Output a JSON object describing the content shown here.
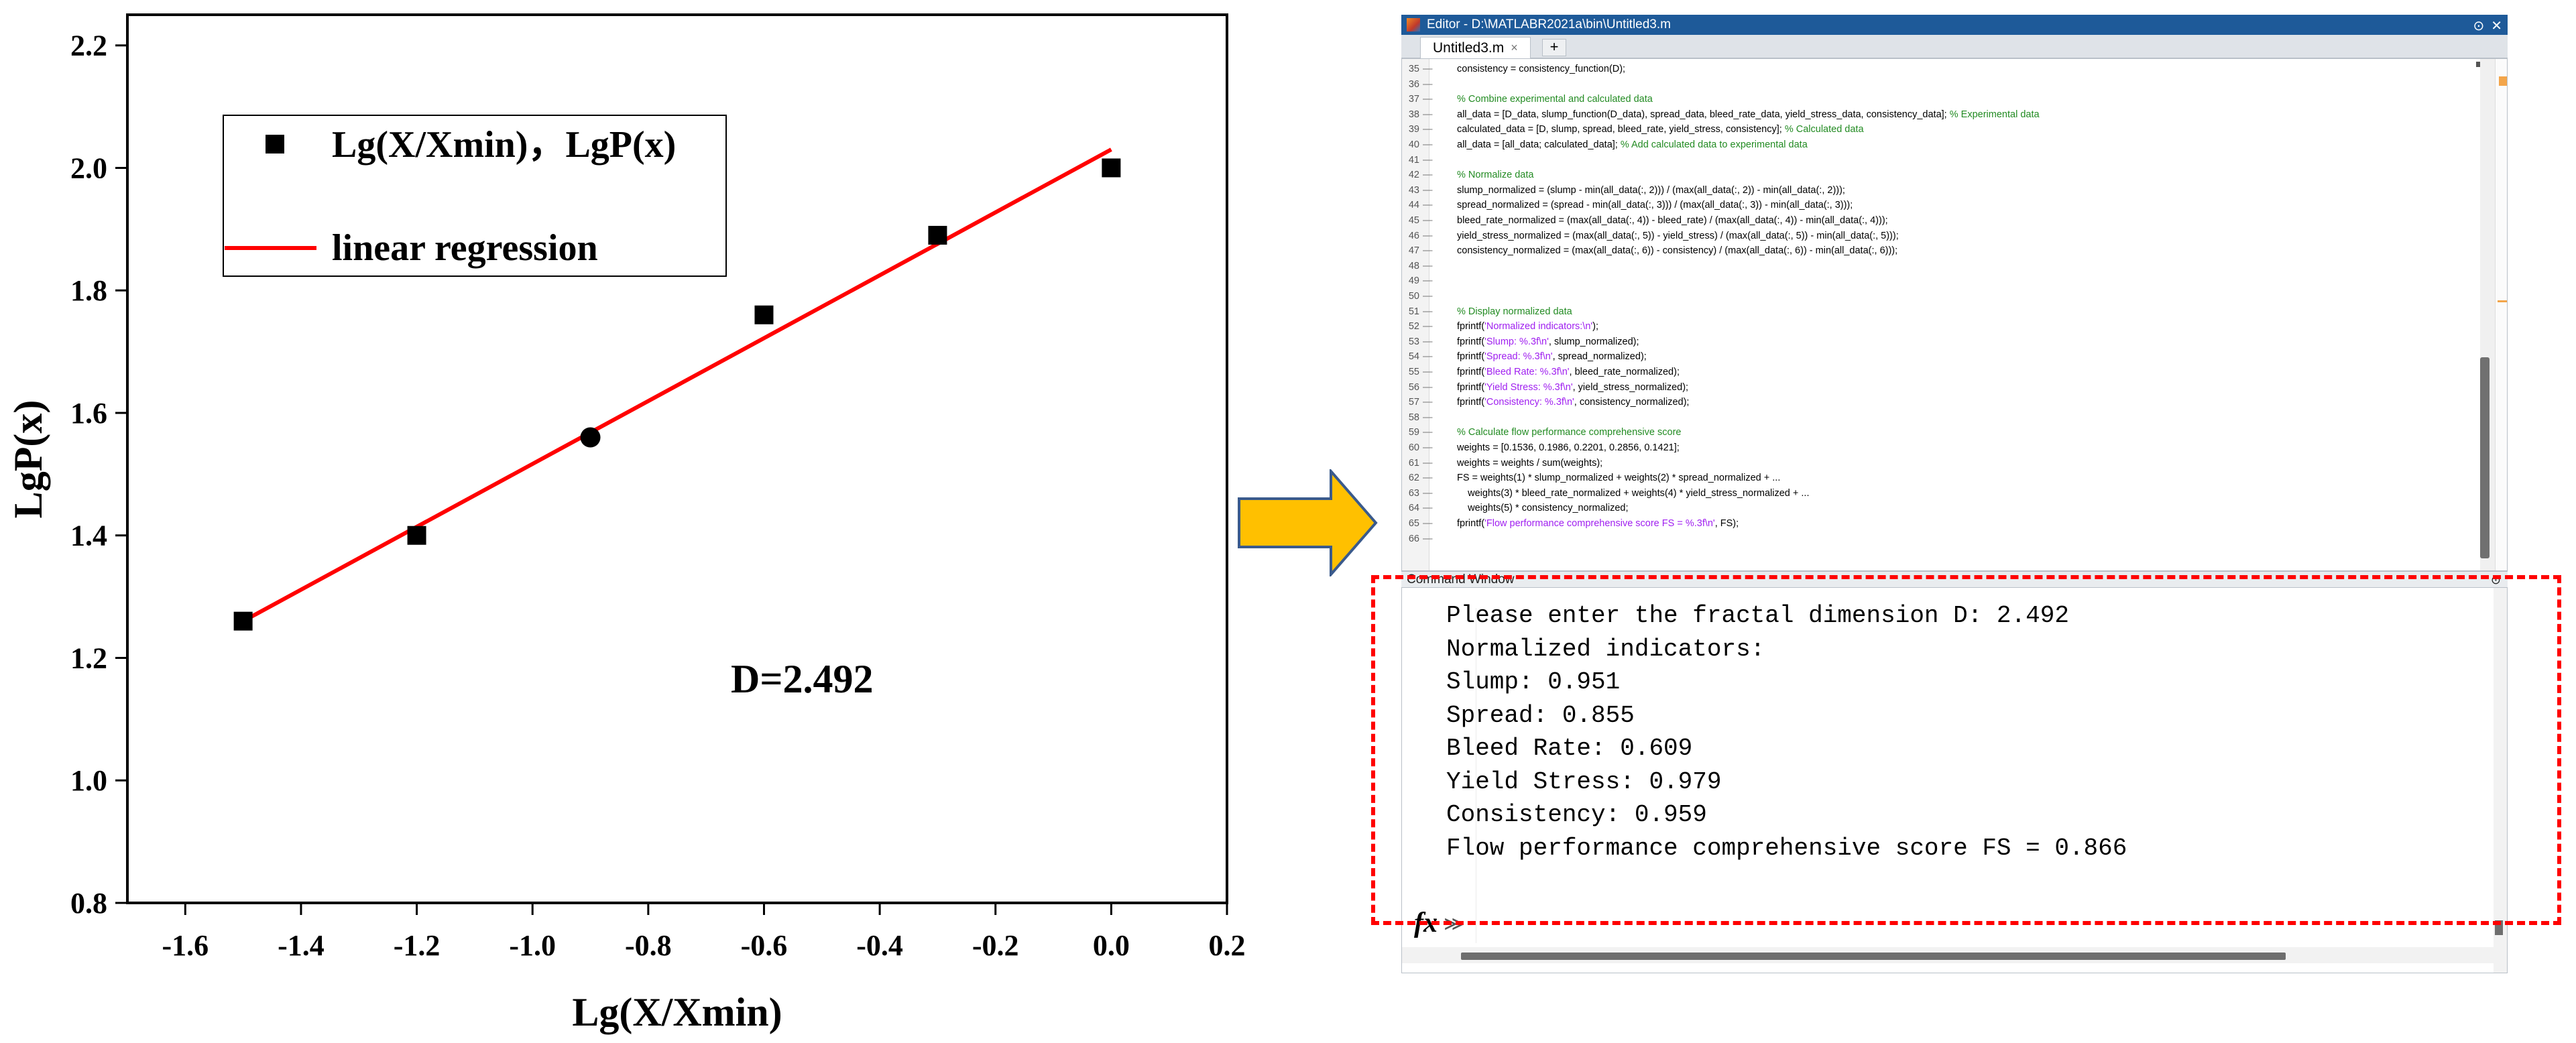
{
  "chart_data": {
    "type": "scatter",
    "xlabel": "Lg(X/Xmin)",
    "ylabel": "LgP(x)",
    "xlim": [
      -1.7,
      0.2
    ],
    "ylim": [
      0.8,
      2.25
    ],
    "x_ticks": [
      "-1.6",
      "-1.4",
      "-1.2",
      "-1.0",
      "-0.8",
      "-0.6",
      "-0.4",
      "-0.2",
      "0.0",
      "0.2"
    ],
    "y_ticks": [
      "0.8",
      "1.0",
      "1.2",
      "1.4",
      "1.6",
      "1.8",
      "2.0",
      "2.2"
    ],
    "series": [
      {
        "name": "Lg(X/Xmin)，LgP(x)",
        "marker": "square",
        "color": "#000000",
        "x": [
          -1.5,
          -1.2,
          -0.9,
          -0.6,
          -0.3,
          0.0
        ],
        "y": [
          1.26,
          1.4,
          1.56,
          1.76,
          1.89,
          2.0
        ]
      },
      {
        "name": "linear regression",
        "kind": "line",
        "color": "#ff0000",
        "x": [
          -1.5,
          0.0
        ],
        "y": [
          1.26,
          2.03
        ]
      }
    ],
    "legend": {
      "position": "top-left",
      "entries": [
        "Lg(X/Xmin)，LgP(x)",
        "linear regression"
      ]
    },
    "annotation": "D=2.492",
    "grid": false
  },
  "arrow": {
    "color": "#ffc000",
    "outline": "#3a5a8c"
  },
  "editor": {
    "title": "Editor - D:\\MATLABR2021a\\bin\\Untitled3.m",
    "tab_label": "Untitled3.m",
    "tab_close": "×",
    "add_tab": "+",
    "lines": [
      {
        "n": "35",
        "parts": [
          {
            "t": "consistency = consistency_function(D);",
            "c": ""
          }
        ]
      },
      {
        "n": "36",
        "parts": []
      },
      {
        "n": "37",
        "parts": [
          {
            "t": "% Combine experimental and calculated data",
            "c": "comment"
          }
        ]
      },
      {
        "n": "38",
        "parts": [
          {
            "t": "all_data = [D_data, slump_function(D_data), spread_data, bleed_rate_data, yield_stress_data, consistency_data]; ",
            "c": ""
          },
          {
            "t": "% Experimental data",
            "c": "comment"
          }
        ]
      },
      {
        "n": "39",
        "parts": [
          {
            "t": "calculated_data = [D, slump, spread, bleed_rate, yield_stress, consistency]; ",
            "c": ""
          },
          {
            "t": "% Calculated data",
            "c": "comment"
          }
        ]
      },
      {
        "n": "40",
        "parts": [
          {
            "t": "all_data = [all_data; calculated_data]; ",
            "c": ""
          },
          {
            "t": "% Add calculated data to experimental data",
            "c": "comment"
          }
        ]
      },
      {
        "n": "41",
        "parts": []
      },
      {
        "n": "42",
        "parts": [
          {
            "t": "% Normalize data",
            "c": "comment"
          }
        ]
      },
      {
        "n": "43",
        "parts": [
          {
            "t": "slump_normalized = (slump - min(all_data(:, 2))) / (max(all_data(:, 2)) - min(all_data(:, 2)));",
            "c": ""
          }
        ]
      },
      {
        "n": "44",
        "parts": [
          {
            "t": "spread_normalized = (spread - min(all_data(:, 3))) / (max(all_data(:, 3)) - min(all_data(:, 3)));",
            "c": ""
          }
        ]
      },
      {
        "n": "45",
        "parts": [
          {
            "t": "bleed_rate_normalized = (max(all_data(:, 4)) - bleed_rate) / (max(all_data(:, 4)) - min(all_data(:, 4)));",
            "c": ""
          }
        ]
      },
      {
        "n": "46",
        "parts": [
          {
            "t": "yield_stress_normalized = (max(all_data(:, 5)) - yield_stress) / (max(all_data(:, 5)) - min(all_data(:, 5)));",
            "c": ""
          }
        ]
      },
      {
        "n": "47",
        "parts": [
          {
            "t": "consistency_normalized = (max(all_data(:, 6)) - consistency) / (max(all_data(:, 6)) - min(all_data(:, 6)));",
            "c": ""
          }
        ]
      },
      {
        "n": "48",
        "parts": []
      },
      {
        "n": "49",
        "parts": []
      },
      {
        "n": "50",
        "parts": []
      },
      {
        "n": "51",
        "parts": [
          {
            "t": "% Display normalized data",
            "c": "comment"
          }
        ]
      },
      {
        "n": "52",
        "parts": [
          {
            "t": "fprintf(",
            "c": ""
          },
          {
            "t": "'Normalized indicators:\\n'",
            "c": "string"
          },
          {
            "t": ");",
            "c": ""
          }
        ]
      },
      {
        "n": "53",
        "parts": [
          {
            "t": "fprintf(",
            "c": ""
          },
          {
            "t": "'Slump: %.3f\\n'",
            "c": "string"
          },
          {
            "t": ", slump_normalized);",
            "c": ""
          }
        ]
      },
      {
        "n": "54",
        "parts": [
          {
            "t": "fprintf(",
            "c": ""
          },
          {
            "t": "'Spread: %.3f\\n'",
            "c": "string"
          },
          {
            "t": ", spread_normalized);",
            "c": ""
          }
        ]
      },
      {
        "n": "55",
        "parts": [
          {
            "t": "fprintf(",
            "c": ""
          },
          {
            "t": "'Bleed Rate: %.3f\\n'",
            "c": "string"
          },
          {
            "t": ", bleed_rate_normalized);",
            "c": ""
          }
        ]
      },
      {
        "n": "56",
        "parts": [
          {
            "t": "fprintf(",
            "c": ""
          },
          {
            "t": "'Yield Stress: %.3f\\n'",
            "c": "string"
          },
          {
            "t": ", yield_stress_normalized);",
            "c": ""
          }
        ]
      },
      {
        "n": "57",
        "parts": [
          {
            "t": "fprintf(",
            "c": ""
          },
          {
            "t": "'Consistency: %.3f\\n'",
            "c": "string"
          },
          {
            "t": ", consistency_normalized);",
            "c": ""
          }
        ]
      },
      {
        "n": "58",
        "parts": []
      },
      {
        "n": "59",
        "parts": [
          {
            "t": "% Calculate flow performance comprehensive score",
            "c": "comment"
          }
        ]
      },
      {
        "n": "60",
        "parts": [
          {
            "t": "weights = [0.1536, 0.1986, 0.2201, 0.2856, 0.1421];",
            "c": ""
          }
        ]
      },
      {
        "n": "61",
        "parts": [
          {
            "t": "weights = weights / sum(weights);",
            "c": ""
          }
        ]
      },
      {
        "n": "62",
        "parts": [
          {
            "t": "FS = weights(1) * slump_normalized + weights(2) * spread_normalized + ...",
            "c": ""
          }
        ]
      },
      {
        "n": "63",
        "parts": [
          {
            "t": "    weights(3) * bleed_rate_normalized + weights(4) * yield_stress_normalized + ...",
            "c": ""
          }
        ]
      },
      {
        "n": "64",
        "parts": [
          {
            "t": "    weights(5) * consistency_normalized;",
            "c": ""
          }
        ]
      },
      {
        "n": "65",
        "parts": [
          {
            "t": "fprintf(",
            "c": ""
          },
          {
            "t": "'Flow performance comprehensive score FS = %.3f\\n'",
            "c": "string"
          },
          {
            "t": ", FS);",
            "c": ""
          }
        ]
      },
      {
        "n": "66",
        "parts": []
      }
    ]
  },
  "command_window": {
    "title": "Command Window",
    "prompt_symbol": "fx",
    "prompt_chevron": "≫",
    "lines": [
      "Please enter the fractal dimension D: 2.492",
      "Normalized indicators:",
      "Slump: 0.951",
      "Spread: 0.855",
      "Bleed Rate: 0.609",
      "Yield Stress: 0.979",
      "Consistency: 0.959",
      "Flow performance comprehensive score FS = 0.866"
    ]
  },
  "highlight": {
    "color": "#ff0000",
    "style": "dashed"
  }
}
